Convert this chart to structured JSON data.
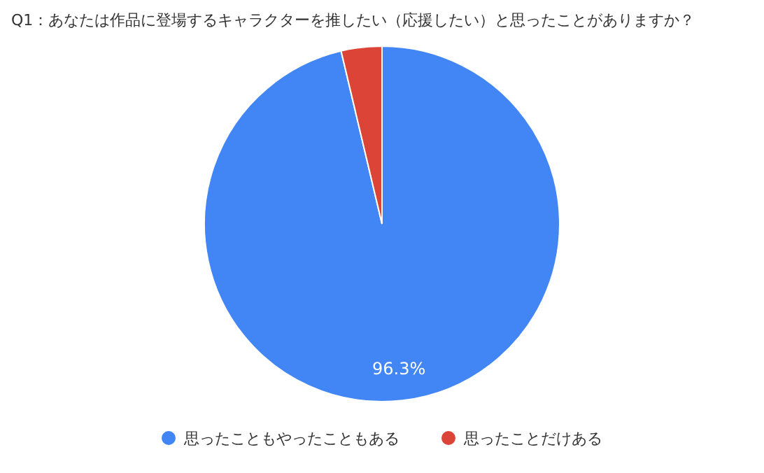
{
  "chart_data": {
    "type": "pie",
    "title": "Q1：あなたは作品に登場するキャラクターを推したい（応援したい）と思ったことがありますか？",
    "categories": [
      "思ったこともやったこともある",
      "思ったことだけある"
    ],
    "values": [
      96.3,
      3.7
    ],
    "colors": [
      "#4285f4",
      "#db4437"
    ],
    "value_labels": [
      "96.3%",
      null
    ],
    "legend": "bottom"
  }
}
